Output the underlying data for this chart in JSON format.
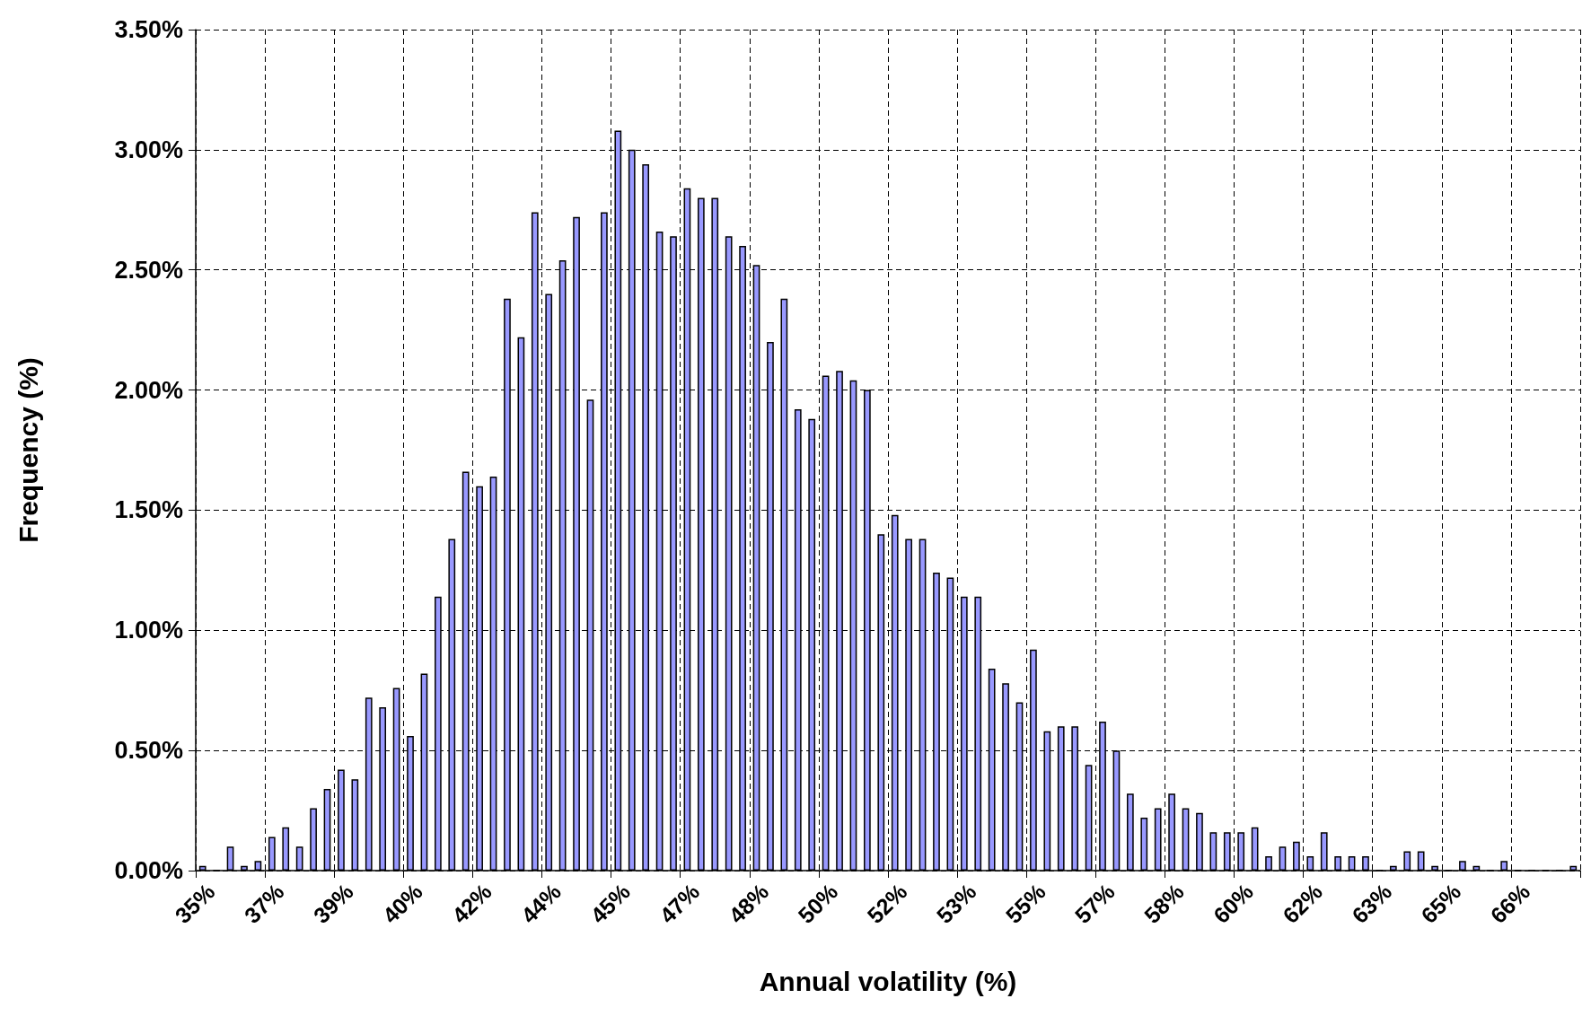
{
  "chart_data": {
    "type": "bar",
    "xlabel": "Annual volatility (%)",
    "ylabel": "Frequency (%)",
    "categories": [
      "35%",
      null,
      null,
      null,
      null,
      "37%",
      null,
      null,
      null,
      null,
      "39%",
      null,
      null,
      null,
      null,
      "40%",
      null,
      null,
      null,
      null,
      "42%",
      null,
      null,
      null,
      null,
      "44%",
      null,
      null,
      null,
      null,
      "45%",
      null,
      null,
      null,
      null,
      "47%",
      null,
      null,
      null,
      null,
      "48%",
      null,
      null,
      null,
      null,
      "50%",
      null,
      null,
      null,
      null,
      "52%",
      null,
      null,
      null,
      null,
      "53%",
      null,
      null,
      null,
      null,
      "55%",
      null,
      null,
      null,
      null,
      "57%",
      null,
      null,
      null,
      null,
      "58%",
      null,
      null,
      null,
      null,
      "60%",
      null,
      null,
      null,
      null,
      "62%",
      null,
      null,
      null,
      null,
      "63%",
      null,
      null,
      null,
      null,
      "65%",
      null,
      null,
      null,
      null,
      "66%",
      null,
      null,
      null,
      null
    ],
    "values": [
      0.02,
      0,
      0.1,
      0.02,
      0.04,
      0.14,
      0.18,
      0.1,
      0.26,
      0.34,
      0.42,
      0.38,
      0.72,
      0.68,
      0.76,
      0.56,
      0.82,
      1.14,
      1.38,
      1.66,
      1.6,
      1.64,
      2.38,
      2.22,
      2.74,
      2.4,
      2.54,
      2.72,
      1.96,
      2.74,
      3.08,
      3.0,
      2.94,
      2.66,
      2.64,
      2.84,
      2.8,
      2.8,
      2.64,
      2.6,
      2.52,
      2.2,
      2.38,
      1.92,
      1.88,
      2.06,
      2.08,
      2.04,
      2.0,
      1.4,
      1.48,
      1.38,
      1.38,
      1.24,
      1.22,
      1.14,
      1.14,
      0.84,
      0.78,
      0.7,
      0.92,
      0.58,
      0.6,
      0.6,
      0.44,
      0.62,
      0.5,
      0.32,
      0.22,
      0.26,
      0.32,
      0.26,
      0.24,
      0.16,
      0.16,
      0.16,
      0.18,
      0.06,
      0.1,
      0.12,
      0.06,
      0.16,
      0.06,
      0.06,
      0.06,
      0,
      0.02,
      0.08,
      0.08,
      0.02,
      0,
      0.04,
      0.02,
      0,
      0.04,
      0,
      0,
      0,
      0,
      0.02
    ],
    "color": "#9999ff",
    "ylim": [
      0,
      3.5
    ],
    "yticks": [
      {
        "value": 0,
        "label": "0.00%"
      },
      {
        "value": 0.5,
        "label": "0.50%"
      },
      {
        "value": 1,
        "label": "1.00%"
      },
      {
        "value": 1.5,
        "label": "1.50%"
      },
      {
        "value": 2,
        "label": "2.00%"
      },
      {
        "value": 2.5,
        "label": "2.50%"
      },
      {
        "value": 3,
        "label": "3.00%"
      },
      {
        "value": 3.5,
        "label": "3.50%"
      }
    ],
    "grid": true
  }
}
